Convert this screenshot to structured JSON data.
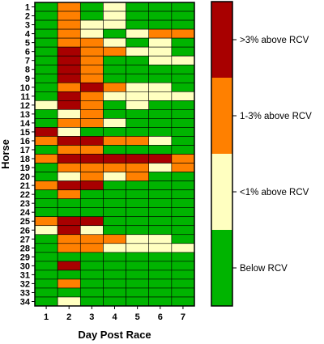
{
  "chart_data": {
    "type": "heatmap",
    "xlabel": "Day Post Race",
    "ylabel": "Horse",
    "x_categories": [
      "1",
      "2",
      "3",
      "4",
      "5",
      "6",
      "7"
    ],
    "y_categories": [
      "1",
      "2",
      "3",
      "4",
      "5",
      "6",
      "7",
      "8",
      "9",
      "10",
      "11",
      "12",
      "13",
      "14",
      "15",
      "16",
      "17",
      "18",
      "19",
      "20",
      "21",
      "22",
      "23",
      "24",
      "25",
      "26",
      "27",
      "28",
      "29",
      "30",
      "31",
      "32",
      "33",
      "34"
    ],
    "legend": [
      {
        "level": 3,
        "label": ">3% above RCV",
        "color": "#a80000"
      },
      {
        "level": 2,
        "label": "1-3% above RCV",
        "color": "#ff8000"
      },
      {
        "level": 1,
        "label": "<1% above RCV",
        "color": "#ffffc0"
      },
      {
        "level": 0,
        "label": "Below RCV",
        "color": "#00b400"
      }
    ],
    "values": [
      [
        0,
        2,
        0,
        1,
        0,
        0,
        0
      ],
      [
        0,
        2,
        0,
        1,
        0,
        0,
        0
      ],
      [
        0,
        2,
        1,
        1,
        0,
        0,
        0
      ],
      [
        0,
        2,
        1,
        0,
        1,
        2,
        2
      ],
      [
        0,
        2,
        2,
        1,
        0,
        1,
        0
      ],
      [
        0,
        3,
        2,
        2,
        1,
        1,
        0
      ],
      [
        0,
        3,
        2,
        0,
        0,
        1,
        1
      ],
      [
        0,
        3,
        2,
        0,
        0,
        0,
        0
      ],
      [
        0,
        3,
        2,
        0,
        0,
        0,
        0
      ],
      [
        0,
        2,
        3,
        2,
        1,
        1,
        0
      ],
      [
        0,
        3,
        2,
        1,
        1,
        1,
        1
      ],
      [
        1,
        3,
        2,
        0,
        1,
        0,
        0
      ],
      [
        0,
        1,
        2,
        0,
        0,
        0,
        0
      ],
      [
        0,
        2,
        2,
        1,
        0,
        0,
        0
      ],
      [
        3,
        1,
        0,
        0,
        0,
        0,
        0
      ],
      [
        2,
        3,
        3,
        2,
        2,
        1,
        0
      ],
      [
        0,
        2,
        2,
        0,
        0,
        0,
        0
      ],
      [
        2,
        3,
        3,
        3,
        3,
        3,
        2
      ],
      [
        0,
        2,
        2,
        2,
        2,
        1,
        2
      ],
      [
        0,
        1,
        2,
        1,
        2,
        0,
        0
      ],
      [
        2,
        3,
        3,
        0,
        0,
        0,
        0
      ],
      [
        0,
        2,
        0,
        0,
        0,
        0,
        0
      ],
      [
        0,
        0,
        0,
        0,
        0,
        0,
        0
      ],
      [
        0,
        0,
        0,
        0,
        0,
        0,
        0
      ],
      [
        2,
        3,
        3,
        0,
        0,
        0,
        0
      ],
      [
        1,
        3,
        1,
        0,
        0,
        0,
        0
      ],
      [
        0,
        2,
        2,
        2,
        1,
        1,
        0
      ],
      [
        0,
        2,
        2,
        1,
        1,
        1,
        1
      ],
      [
        0,
        0,
        0,
        0,
        0,
        0,
        0
      ],
      [
        0,
        3,
        0,
        0,
        0,
        0,
        0
      ],
      [
        0,
        0,
        0,
        0,
        0,
        0,
        0
      ],
      [
        0,
        2,
        0,
        0,
        0,
        0,
        0
      ],
      [
        0,
        0,
        0,
        0,
        0,
        0,
        0
      ],
      [
        0,
        1,
        0,
        0,
        0,
        0,
        0
      ]
    ]
  }
}
